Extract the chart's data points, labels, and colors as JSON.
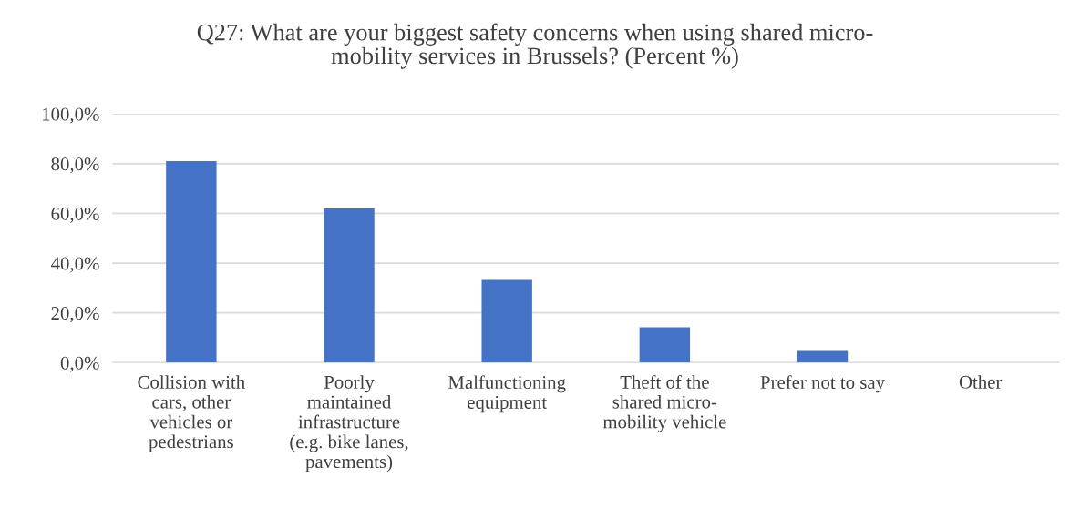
{
  "chart_data": {
    "type": "bar",
    "title": "Q27: What are your biggest safety concerns when using shared micro-\nmobility services in Brussels? (Percent %)",
    "categories": [
      "Collision with\ncars, other\nvehicles or\npedestrians",
      "Poorly\nmaintained\ninfrastructure\n(e.g. bike lanes,\npavements)",
      "Malfunctioning\nequipment",
      "Theft of the\nshared micro-\nmobility vehicle",
      "Prefer not to say",
      "Other"
    ],
    "values": [
      81.0,
      62.0,
      33.2,
      14.2,
      4.7,
      0
    ],
    "color": "#4472c4",
    "ylim": [
      0,
      100
    ],
    "yticks": [
      {
        "value": 0,
        "label": "0,0%"
      },
      {
        "value": 20,
        "label": "20,0%"
      },
      {
        "value": 40,
        "label": "40,0%"
      },
      {
        "value": 60,
        "label": "60,0%"
      },
      {
        "value": 80,
        "label": "80,0%"
      },
      {
        "value": 100,
        "label": "100,0%"
      }
    ],
    "grid": "y"
  }
}
